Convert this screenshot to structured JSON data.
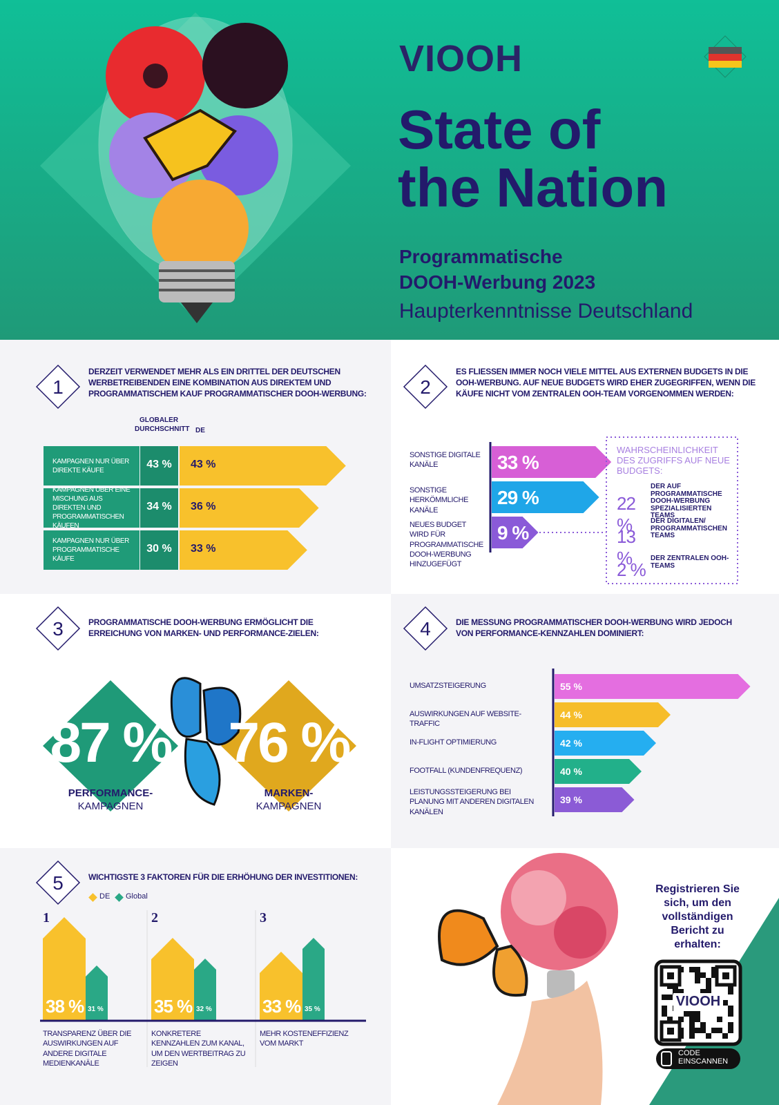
{
  "header": {
    "logo": "VIOOH",
    "title_line1": "State of",
    "title_line2": "the Nation",
    "subtitle_line1": "Programmatische",
    "subtitle_line2": "DOOH-Werbung 2023",
    "subtitle_line3": "Haupterkenntnisse Deutschland"
  },
  "section1": {
    "number": "1",
    "heading": "Derzeit verwendet mehr als ein Drittel der deutschen Werbetreibenden eine Kombination aus direktem und programmatischem Kauf programmatischer DOOH-Werbung:",
    "col_global": "Globaler Durchschnitt",
    "col_de": "DE",
    "color": "#f8c12c",
    "rows": [
      {
        "label": "Kampagnen nur über direkte Käufe",
        "global_label": "43 %",
        "de": 43,
        "de_label": "43 %"
      },
      {
        "label": "Kampagnen über eine Mischung aus direkten und programmatischen Käufen",
        "global_label": "34 %",
        "de": 36,
        "de_label": "36 %"
      },
      {
        "label": "Kampagnen nur über programmatische Käufe",
        "global_label": "30 %",
        "de": 33,
        "de_label": "33 %"
      }
    ]
  },
  "section2": {
    "number": "2",
    "heading": "Es fließen immer noch viele Mittel aus externen Budgets in die OOH-Werbung. Auf neue Budgets wird eher zugegriffen, wenn die Käufe nicht vom zentralen OOH-Team vorgenommen werden:",
    "items": [
      {
        "label": "Sonstige digitale Kanäle",
        "value": 33,
        "value_label": "33 %",
        "color": "#d75fd6"
      },
      {
        "label": "Sonstige herkömmliche Kanäle",
        "value": 29,
        "value_label": "29 %",
        "color": "#1fa6e8"
      },
      {
        "label": "Neues Budget wird für programmatische DOOH-Werbung hinzugefügt",
        "value": 9,
        "value_label": "9 %",
        "color": "#8a5ad8"
      }
    ],
    "box_title": "Wahrscheinlichkeit des Zugriffs auf neue Budgets:",
    "box_entries": [
      {
        "value_label": "22 %",
        "text": "Der auf programmatische DOOH-Werbung spezialisierten Teams"
      },
      {
        "value_label": "13 %",
        "text": "Der digitalen/ programmatischen Teams"
      },
      {
        "value_label": "2 %",
        "text": "Der zentralen OOH-Teams"
      }
    ]
  },
  "section3": {
    "number": "3",
    "heading": "Programmatische DOOH-Werbung ermöglicht die Erreichung von Marken- und Performance-Zielen:",
    "performance": {
      "value_label": "87 %",
      "label_line1": "PERFORMANCE-",
      "label_line2": "KAMPAGNEN",
      "color": "#1f9a78"
    },
    "brand": {
      "value_label": "76 %",
      "label_line1": "MARKEN-",
      "label_line2": "KAMPAGNEN",
      "color": "#e0a81e"
    }
  },
  "section4": {
    "number": "4",
    "heading": "Die Messung programmatischer DOOH-Werbung wird jedoch von Performance-Kennzahlen dominiert:",
    "items": [
      {
        "label": "Umsatzsteigerung",
        "value": 55,
        "value_label": "55 %",
        "color": "#e46ee0"
      },
      {
        "label": "Auswirkungen auf Website-Traffic",
        "value": 44,
        "value_label": "44 %",
        "color": "#f6bd2a"
      },
      {
        "label": "In-Flight Optimierung",
        "value": 42,
        "value_label": "42 %",
        "color": "#25aef0"
      },
      {
        "label": "Footfall (Kundenfrequenz)",
        "value": 40,
        "value_label": "40 %",
        "color": "#22b08a"
      },
      {
        "label": "Leistungssteigerung bei Planung mit anderen digitalen Kanälen",
        "value": 39,
        "value_label": "39 %",
        "color": "#8b5bd6"
      }
    ]
  },
  "section5": {
    "number": "5",
    "heading": "Wichtigste 3 Faktoren für die Erhöhung der Investitionen:",
    "legend_de": "DE",
    "legend_global": "Global",
    "de_color": "#f8c12c",
    "global_color": "#2aa886",
    "factors": [
      {
        "rank": "1",
        "de": 38,
        "de_label": "38 %",
        "global": 31,
        "global_label": "31 %",
        "text": "Transparenz über die Auswirkungen auf andere digitale Medienkanäle"
      },
      {
        "rank": "2",
        "de": 35,
        "de_label": "35 %",
        "global": 32,
        "global_label": "32 %",
        "text": "Konkretere Kennzahlen zum Kanal, um den Wertbeitrag zu zeigen"
      },
      {
        "rank": "3",
        "de": 33,
        "de_label": "33 %",
        "global": 35,
        "global_label": "35 %",
        "text": "Mehr Kosteneffizienz vom Markt"
      }
    ]
  },
  "footer": {
    "cta": "Registrieren Sie sich, um den vollständigen Bericht zu erhalten:",
    "qr_logo": "VIOOH",
    "scan_line1": "CODE",
    "scan_line2": "EINSCANNEN"
  }
}
